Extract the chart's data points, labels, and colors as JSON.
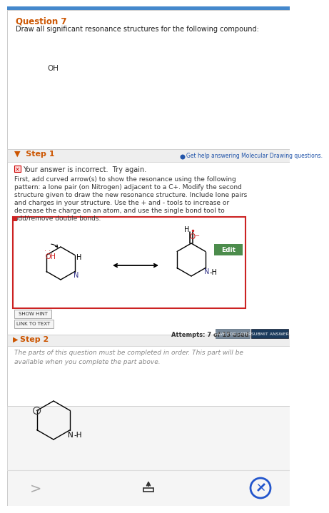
{
  "title": "Question 7",
  "title_color": "#cc5500",
  "question_text": "Draw all significant resonance structures for the following compound:",
  "step1_title": "Step 1",
  "step1_color": "#cc5500",
  "help_text": "Get help answering Molecular Drawing questions.",
  "incorrect_text": "Your answer is incorrect.  Try again.",
  "body_lines": [
    "First, add curved arrow(s) to show the resonance using the following",
    "pattern: a lone pair (on Nitrogen) adjacent to a C+. Modify the second",
    "structure given to draw the new resonance structure. Include lone pairs",
    "and charges in your structure. Use the + and - tools to increase or",
    "decrease the charge on an atom, and use the single bond tool to",
    "add/remove double bonds."
  ],
  "show_hint": "SHOW HINT",
  "link_to_text": "LINK TO TEXT",
  "attempts_text": "Attempts: 7 of 15 used",
  "save_text": "SAVE FOR LATER",
  "submit_text": "SUBMIT ANSWER",
  "step2_title": "Step 2",
  "step2_color": "#cc5500",
  "step2_lines": [
    "The parts of this question must be completed in order. This part will be",
    "available when you complete the part above."
  ],
  "bg_gray": "#e8e8e8",
  "bg_white": "#ffffff",
  "border_light": "#cccccc",
  "border_red": "#cc2222",
  "btn_green": "#4c8c4c",
  "btn_gray": "#888888",
  "btn_navy": "#1a3a5c",
  "blue_dot": "#2255aa",
  "blue_circle": "#2255cc",
  "nav_gray": "#cccccc",
  "text_gray": "#888888"
}
